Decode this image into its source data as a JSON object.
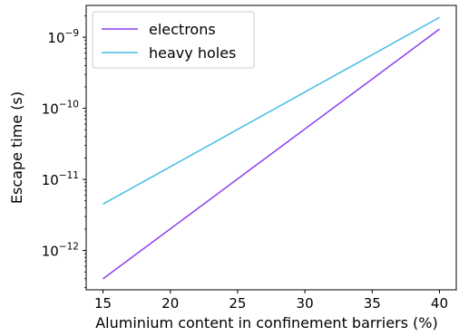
{
  "chart_data": {
    "type": "line",
    "title": "",
    "xlabel": "Aluminium content in confinement barriers (%)",
    "ylabel": "Escape time (s)",
    "xlim": [
      13.75,
      41.25
    ],
    "ylim": [
      2.8e-13,
      2.8e-09
    ],
    "yscale": "log",
    "xticks": [
      15,
      20,
      25,
      30,
      35,
      40
    ],
    "yticks": [
      1e-12,
      1e-11,
      1e-10,
      1e-09
    ],
    "ytick_labels": [
      {
        "base": "10",
        "exp": "−12"
      },
      {
        "base": "10",
        "exp": "−11"
      },
      {
        "base": "10",
        "exp": "−10"
      },
      {
        "base": "10",
        "exp": "−9"
      }
    ],
    "legend_position": "top-left",
    "grid": false,
    "series": [
      {
        "name": "electrons",
        "color": "#8a3ff0",
        "x": [
          15,
          40
        ],
        "y": [
          4e-13,
          1.3e-09
        ]
      },
      {
        "name": "heavy holes",
        "color": "#44bde8",
        "x": [
          15,
          40
        ],
        "y": [
          4.5e-12,
          1.9e-09
        ]
      }
    ]
  }
}
